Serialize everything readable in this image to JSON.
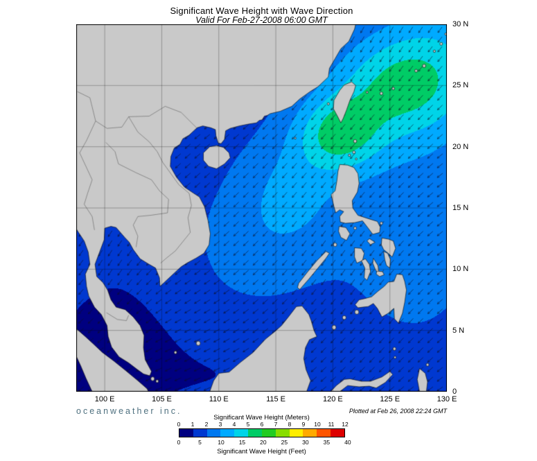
{
  "header": {
    "title": "Significant Wave Height with Wave Direction",
    "subtitle": "Valid For Feb-27-2008 06:00 GMT"
  },
  "axes": {
    "x_ticks": [
      "100 E",
      "105 E",
      "110 E",
      "115 E",
      "120 E",
      "125 E",
      "130 E"
    ],
    "y_ticks": [
      "0",
      "5 N",
      "10 N",
      "15 N",
      "20 N",
      "25 N",
      "30 N"
    ]
  },
  "footer": {
    "brand": "oceanweather inc.",
    "plotted": "Plotted at Feb 26, 2008 22:24 GMT"
  },
  "colorbar": {
    "meters_title": "Significant Wave Height (Meters)",
    "feet_title": "Significant Wave Height (Feet)",
    "meters_ticks": [
      "0",
      "1",
      "2",
      "3",
      "4",
      "5",
      "6",
      "7",
      "8",
      "9",
      "10",
      "11",
      "12"
    ],
    "feet_ticks": [
      "0",
      "5",
      "10",
      "15",
      "20",
      "25",
      "30",
      "35",
      "40"
    ],
    "colors": [
      "#000080",
      "#0038d0",
      "#0078f0",
      "#00aaff",
      "#00d4e8",
      "#00cc66",
      "#22cc22",
      "#88dd00",
      "#ffee00",
      "#ffaa00",
      "#ff5500",
      "#dd0000"
    ]
  },
  "map": {
    "land_color": "#c9c9c9",
    "coast_color": "#000000",
    "grid_color": "rgba(0,0,0,0.55)"
  }
}
